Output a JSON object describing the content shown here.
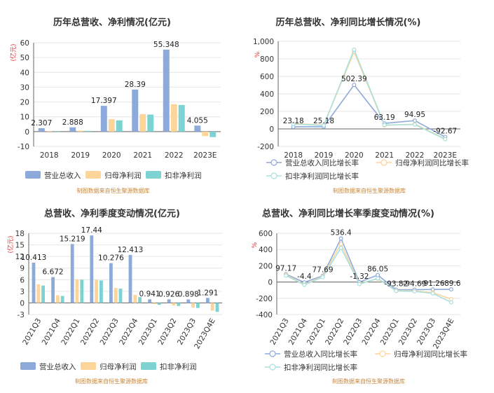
{
  "source_note": "制图数据来自恒生聚源数据库",
  "chart_data": [
    {
      "type": "bar",
      "title": "历年总营收、净利情况(亿元)",
      "unit_label": "(亿元)",
      "categories": [
        "2018",
        "2019",
        "2020",
        "2021",
        "2022",
        "2023E"
      ],
      "ylim": [
        -10,
        60
      ],
      "yticks": [
        -10,
        0,
        10,
        20,
        30,
        40,
        50,
        60
      ],
      "series": [
        {
          "name": "营业总收入",
          "color": "#8eaadb",
          "values": [
            2.307,
            2.888,
            17.397,
            28.39,
            55.348,
            4.055
          ],
          "labels": [
            "2.307",
            "2.888",
            "17.397",
            "28.39",
            "55.348",
            "4.055"
          ]
        },
        {
          "name": "归母净利润",
          "color": "#fcd59a",
          "values": [
            0.4,
            0.6,
            8.4,
            11.8,
            18.5,
            -3.0
          ]
        },
        {
          "name": "扣非净利润",
          "color": "#7dd3d2",
          "values": [
            0.3,
            0.5,
            7.6,
            11.5,
            18.0,
            -3.7
          ]
        }
      ]
    },
    {
      "type": "line",
      "title": "历年总营收、净利同比增长情况(%)",
      "unit_label": "%",
      "categories": [
        "2018",
        "2019",
        "2020",
        "2021",
        "2022",
        "2023E"
      ],
      "ylim": [
        -200,
        1000
      ],
      "yticks": [
        -200,
        0,
        200,
        400,
        600,
        800,
        1000
      ],
      "ytick_labels": [
        "-200",
        "0",
        "200",
        "400",
        "600",
        "800",
        "1,000"
      ],
      "series": [
        {
          "name": "营业总收入同比增长率",
          "color": "#8eaadb",
          "values": [
            23.18,
            25.18,
            502.39,
            63.19,
            94.95,
            -92.67
          ],
          "labels": [
            "23.18",
            "25.18",
            "502.39",
            "63.19",
            "94.95",
            "-92.67"
          ]
        },
        {
          "name": "归母净利润同比增长率",
          "color": "#fcd59a",
          "values": [
            60,
            45,
            880,
            40,
            55,
            -115
          ]
        },
        {
          "name": "扣非净利润同比增长率",
          "color": "#a8e0df",
          "values": [
            55,
            40,
            905,
            45,
            50,
            -118
          ]
        }
      ]
    },
    {
      "type": "bar",
      "title": "总营收、净利季度变动情况(亿元)",
      "unit_label": "(亿元)",
      "categories": [
        "2021Q3",
        "2021Q4",
        "2022Q1",
        "2022Q2",
        "2022Q3",
        "2022Q4",
        "2023Q1",
        "2023Q2",
        "2023Q3",
        "2023Q4E"
      ],
      "ylim": [
        -3,
        18
      ],
      "yticks": [
        -3,
        0,
        3,
        6,
        9,
        12,
        15,
        18
      ],
      "series": [
        {
          "name": "营业总收入",
          "color": "#8eaadb",
          "values": [
            10.413,
            6.672,
            15.219,
            17.44,
            10.276,
            12.413,
            0.941,
            0.926,
            0.898,
            1.291
          ],
          "labels": [
            "10.413",
            "6.672",
            "15.219",
            "17.44",
            "10.276",
            "12.413",
            "0.941",
            "0.926",
            "0.898",
            "1.291"
          ]
        },
        {
          "name": "归母净利润",
          "color": "#fcd59a",
          "values": [
            4.8,
            2.0,
            6.1,
            6.0,
            3.9,
            2.1,
            -0.3,
            -0.7,
            -1.2,
            -2.0
          ]
        },
        {
          "name": "扣非净利润",
          "color": "#7dd3d2",
          "values": [
            4.5,
            1.8,
            6.0,
            5.8,
            3.7,
            1.5,
            -0.5,
            -0.8,
            -1.3,
            -2.3
          ]
        }
      ]
    },
    {
      "type": "line",
      "title": "总营收、净利同比增长率季度变动情况(%)",
      "unit_label": "%",
      "categories": [
        "2021Q3",
        "2021Q4",
        "2022Q1",
        "2022Q2",
        "2022Q3",
        "2022Q4",
        "2023Q1",
        "2023Q2",
        "2023Q3",
        "2023Q4E"
      ],
      "ylim": [
        -400,
        600
      ],
      "yticks": [
        -400,
        -200,
        0,
        200,
        400,
        600
      ],
      "series": [
        {
          "name": "营业总收入同比增长率",
          "color": "#8eaadb",
          "values": [
            97.17,
            -4.4,
            77.69,
            536.4,
            -1.32,
            86.05,
            -93.82,
            -94.69,
            -91.26,
            -89.6
          ],
          "labels": [
            "97.17",
            "-4.4",
            "77.69",
            "536.4",
            "-1.32",
            "86.05",
            "-93.82",
            "-94.69",
            "-91.26",
            "-89.6"
          ]
        },
        {
          "name": "归母净利润同比增长率",
          "color": "#fcd59a",
          "values": [
            90,
            -30,
            70,
            470,
            -20,
            40,
            -105,
            -110,
            -130,
            -210
          ]
        },
        {
          "name": "扣非净利润同比增长率",
          "color": "#a8e0df",
          "values": [
            80,
            -35,
            60,
            420,
            -25,
            45,
            -110,
            -115,
            -140,
            -250
          ]
        }
      ]
    }
  ]
}
